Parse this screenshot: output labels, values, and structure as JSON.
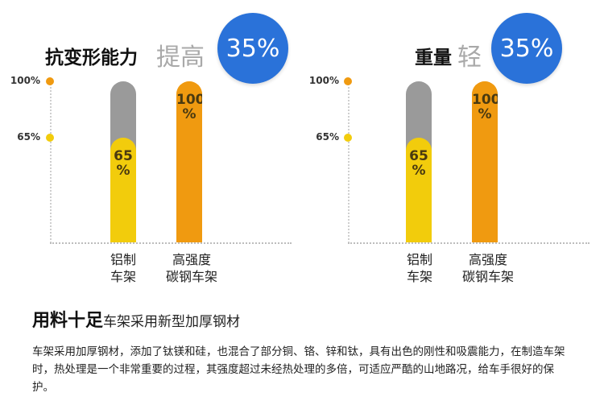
{
  "colors": {
    "blue": "#2a72d9",
    "orange": "#f09a10",
    "yellow": "#f2cc0c",
    "gray": "#9a9a9a",
    "dot65": "#f2cc0c",
    "dot100": "#f09a10"
  },
  "headline": {
    "strong": "用料十足",
    "sub": "车架采用新型加厚钢材"
  },
  "description": "车架采用加厚钢材，添加了钛镁和硅，也混合了部分铜、铬、锌和钛，具有出色的刚性和吸震能力，在制造车架时，热处理是一个非常重要的过程，其强度超过未经热处理的多倍，可适应严酷的山地路况，给车手很好的保护。",
  "chart_data": [
    {
      "type": "bar",
      "title_bold": "抗变形能力",
      "title_light": "提高",
      "badge": "35%",
      "y_ticks": [
        {
          "value": 100,
          "label": "100%"
        },
        {
          "value": 65,
          "label": "65%"
        }
      ],
      "ylim": [
        0,
        100
      ],
      "bars": [
        {
          "category": "铝制\n车架",
          "value": 65,
          "label": "65\n%",
          "fill": "#f2cc0c",
          "background": "#9a9a9a"
        },
        {
          "category": "高强度\n碳钢车架",
          "value": 100,
          "label": "100\n%",
          "fill": "#f09a10",
          "background": "#f09a10"
        }
      ]
    },
    {
      "type": "bar",
      "title_bold": "重量",
      "title_light": "轻",
      "badge": "35%",
      "y_ticks": [
        {
          "value": 100,
          "label": "100%"
        },
        {
          "value": 65,
          "label": "65%"
        }
      ],
      "ylim": [
        0,
        100
      ],
      "bars": [
        {
          "category": "铝制\n车架",
          "value": 65,
          "label": "65\n%",
          "fill": "#f2cc0c",
          "background": "#9a9a9a"
        },
        {
          "category": "高强度\n碳钢车架",
          "value": 100,
          "label": "100\n%",
          "fill": "#f09a10",
          "background": "#f09a10"
        }
      ]
    }
  ]
}
